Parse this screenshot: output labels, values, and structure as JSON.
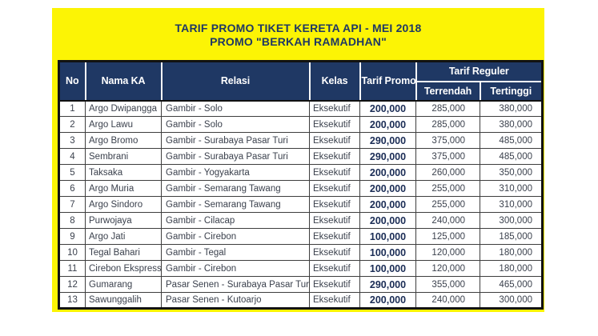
{
  "title": {
    "line1": "TARIF PROMO TIKET KERETA API - MEI 2018",
    "line2": "PROMO \"BERKAH RAMADHAN\""
  },
  "table": {
    "headers": {
      "no": "No",
      "nama_ka": "Nama KA",
      "relasi": "Relasi",
      "kelas": "Kelas",
      "tarif_promo": "Tarif Promo",
      "tarif_reguler": "Tarif Reguler",
      "terrendah": "Terrendah",
      "tertinggi": "Tertinggi"
    },
    "rows": [
      {
        "no": "1",
        "nama_ka": "Argo Dwipangga",
        "relasi": "Gambir - Solo",
        "kelas": "Eksekutif",
        "tarif_promo": "200,000",
        "terrendah": "285,000",
        "tertinggi": "380,000"
      },
      {
        "no": "2",
        "nama_ka": "Argo Lawu",
        "relasi": "Gambir - Solo",
        "kelas": "Eksekutif",
        "tarif_promo": "200,000",
        "terrendah": "285,000",
        "tertinggi": "380,000"
      },
      {
        "no": "3",
        "nama_ka": "Argo Bromo",
        "relasi": "Gambir - Surabaya Pasar Turi",
        "kelas": "Eksekutif",
        "tarif_promo": "290,000",
        "terrendah": "375,000",
        "tertinggi": "485,000"
      },
      {
        "no": "4",
        "nama_ka": "Sembrani",
        "relasi": "Gambir - Surabaya Pasar Turi",
        "kelas": "Eksekutif",
        "tarif_promo": "290,000",
        "terrendah": "375,000",
        "tertinggi": "485,000"
      },
      {
        "no": "5",
        "nama_ka": "Taksaka",
        "relasi": "Gambir - Yogyakarta",
        "kelas": "Eksekutif",
        "tarif_promo": "200,000",
        "terrendah": "260,000",
        "tertinggi": "350,000"
      },
      {
        "no": "6",
        "nama_ka": "Argo Muria",
        "relasi": "Gambir - Semarang Tawang",
        "kelas": "Eksekutif",
        "tarif_promo": "200,000",
        "terrendah": "255,000",
        "tertinggi": "310,000"
      },
      {
        "no": "7",
        "nama_ka": "Argo Sindoro",
        "relasi": "Gambir - Semarang Tawang",
        "kelas": "Eksekutif",
        "tarif_promo": "200,000",
        "terrendah": "255,000",
        "tertinggi": "310,000"
      },
      {
        "no": "8",
        "nama_ka": "Purwojaya",
        "relasi": "Gambir - Cilacap",
        "kelas": "Eksekutif",
        "tarif_promo": "200,000",
        "terrendah": "240,000",
        "tertinggi": "300,000"
      },
      {
        "no": "9",
        "nama_ka": "Argo Jati",
        "relasi": "Gambir - Cirebon",
        "kelas": "Eksekutif",
        "tarif_promo": "100,000",
        "terrendah": "125,000",
        "tertinggi": "185,000"
      },
      {
        "no": "10",
        "nama_ka": "Tegal Bahari",
        "relasi": "Gambir - Tegal",
        "kelas": "Eksekutif",
        "tarif_promo": "100,000",
        "terrendah": "120,000",
        "tertinggi": "180,000"
      },
      {
        "no": "11",
        "nama_ka": "Cirebon Ekspress",
        "relasi": "Gambir - Cirebon",
        "kelas": "Eksekutif",
        "tarif_promo": "100,000",
        "terrendah": "120,000",
        "tertinggi": "180,000"
      },
      {
        "no": "12",
        "nama_ka": "Gumarang",
        "relasi": "Pasar Senen - Surabaya Pasar Turi",
        "kelas": "Eksekutif",
        "tarif_promo": "290,000",
        "terrendah": "355,000",
        "tertinggi": "465,000"
      },
      {
        "no": "13",
        "nama_ka": "Sawunggalih",
        "relasi": "Pasar Senen - Kutoarjo",
        "kelas": "Eksekutif",
        "tarif_promo": "200,000",
        "terrendah": "240,000",
        "tertinggi": "300,000"
      }
    ]
  },
  "colors": {
    "banner_yellow": "#fcf405",
    "header_navy": "#1f3864",
    "title_text": "#1f3864",
    "body_text": "#3b414d",
    "promo_value_text": "#1a2c55"
  }
}
